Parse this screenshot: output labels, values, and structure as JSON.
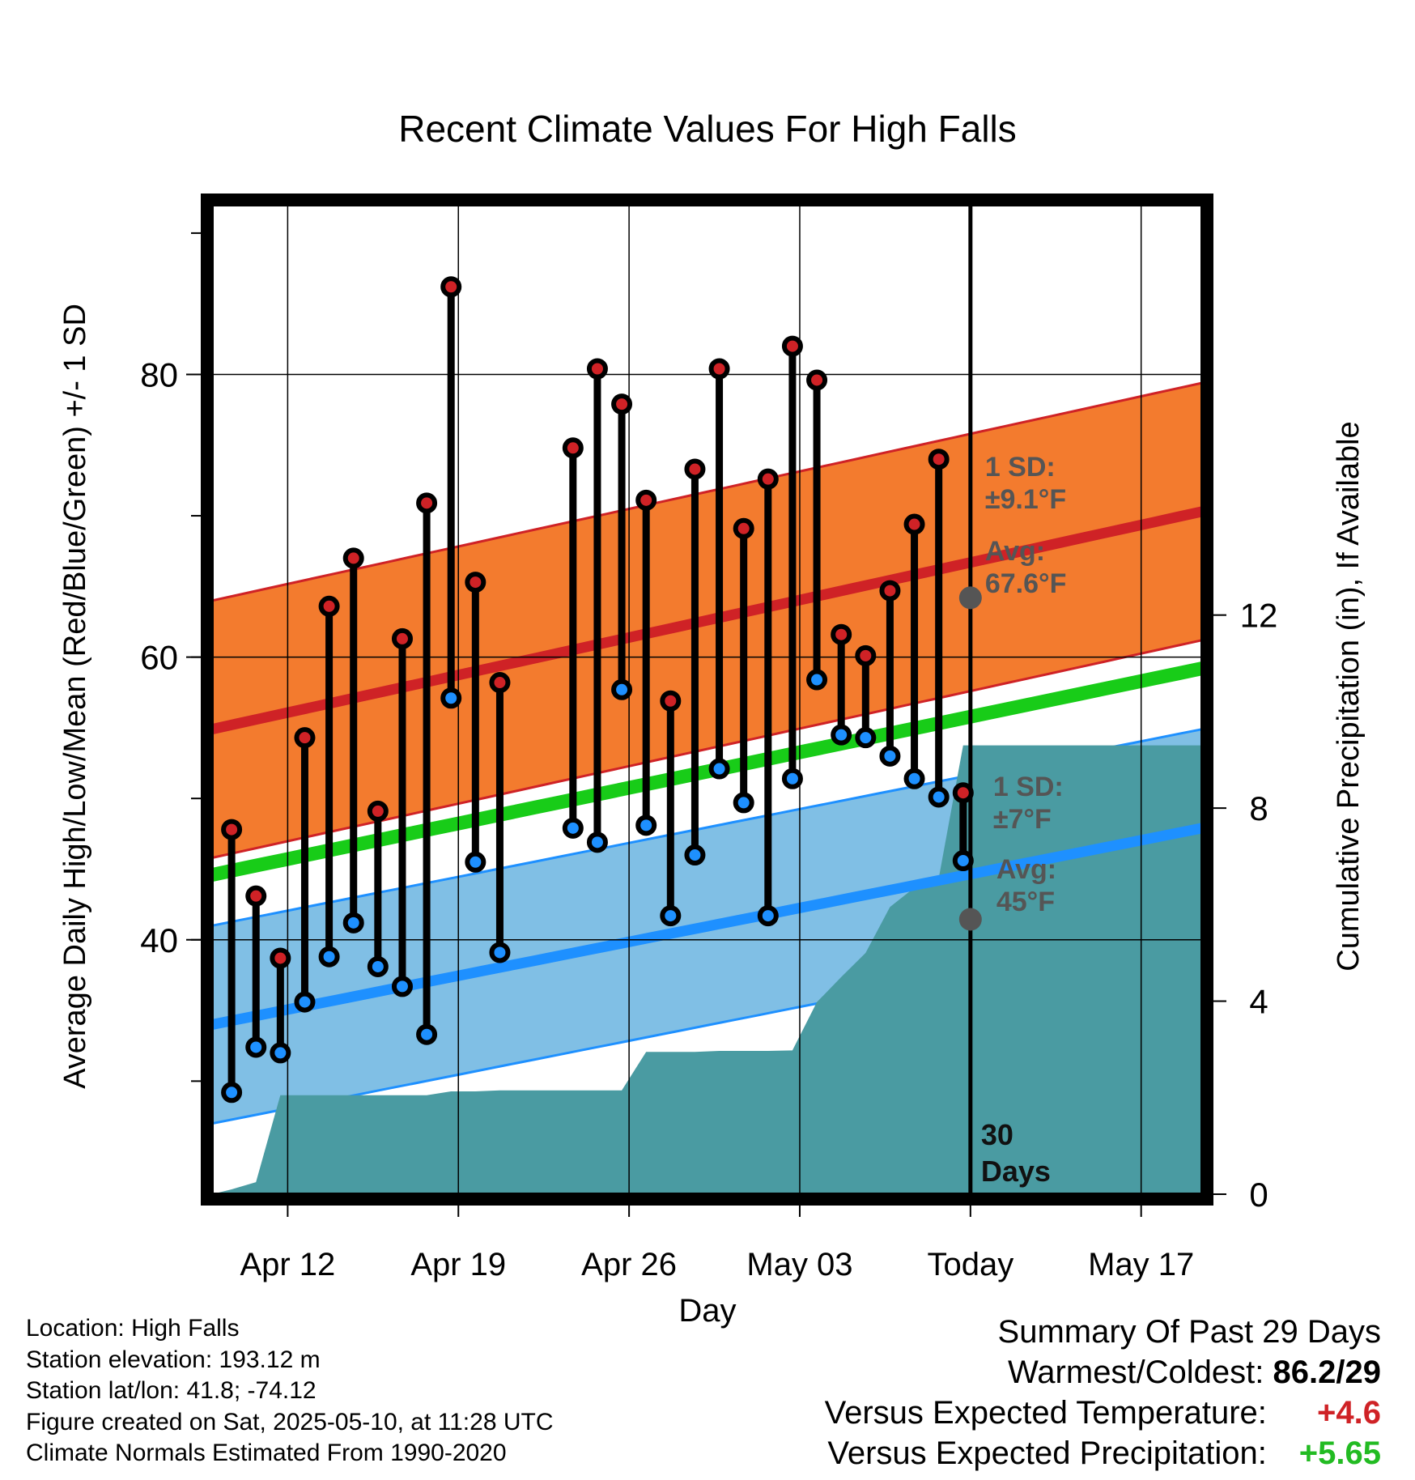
{
  "chart_data": {
    "type": "line",
    "title": "Recent Climate Values For High Falls",
    "xlabel": "Day",
    "ylabel": "Average Daily High/Low/Mean (Red/Blue/Green) +/- 1 SD",
    "y2label": "Cumulative Precipitation (in), If Available",
    "x_ticks": [
      "Apr 12",
      "Apr 19",
      "Apr 26",
      "May 03",
      "Today",
      "May 17"
    ],
    "x_tick_days": [
      12,
      19,
      26,
      33,
      40,
      47
    ],
    "xlim": [
      8.9,
      49.5
    ],
    "ylim": [
      22,
      92
    ],
    "y_ticks": [
      40,
      60,
      80
    ],
    "y2lim": [
      0,
      20.5
    ],
    "y2_ticks": [
      0,
      4,
      8,
      12
    ],
    "grid": true,
    "today_day": 40,
    "today_label": "30 Days",
    "daily": [
      {
        "day": 9.7,
        "high": 47.8,
        "low": 29.2
      },
      {
        "day": 10.7,
        "high": 43.1,
        "low": 32.4
      },
      {
        "day": 11.7,
        "high": 38.7,
        "low": 32.0
      },
      {
        "day": 12.7,
        "high": 54.3,
        "low": 35.6
      },
      {
        "day": 13.7,
        "high": 63.6,
        "low": 38.8
      },
      {
        "day": 14.7,
        "high": 67.0,
        "low": 41.2
      },
      {
        "day": 15.7,
        "high": 49.1,
        "low": 38.1
      },
      {
        "day": 16.7,
        "high": 61.3,
        "low": 36.7
      },
      {
        "day": 17.7,
        "high": 70.9,
        "low": 33.3
      },
      {
        "day": 18.7,
        "high": 86.2,
        "low": 57.1
      },
      {
        "day": 19.7,
        "high": 65.3,
        "low": 45.5
      },
      {
        "day": 20.7,
        "high": 58.2,
        "low": 39.1
      },
      {
        "day": 23.7,
        "high": 74.8,
        "low": 47.9
      },
      {
        "day": 24.7,
        "high": 80.4,
        "low": 46.9
      },
      {
        "day": 25.7,
        "high": 77.9,
        "low": 57.7
      },
      {
        "day": 26.7,
        "high": 71.1,
        "low": 48.1
      },
      {
        "day": 27.7,
        "high": 56.9,
        "low": 41.7
      },
      {
        "day": 28.7,
        "high": 73.3,
        "low": 46.0
      },
      {
        "day": 29.7,
        "high": 80.4,
        "low": 52.1
      },
      {
        "day": 30.7,
        "high": 69.1,
        "low": 49.7
      },
      {
        "day": 31.7,
        "high": 72.6,
        "low": 41.7
      },
      {
        "day": 32.7,
        "high": 82.0,
        "low": 51.4
      },
      {
        "day": 33.7,
        "high": 79.6,
        "low": 58.4
      },
      {
        "day": 34.7,
        "high": 61.6,
        "low": 54.5
      },
      {
        "day": 35.7,
        "high": 60.1,
        "low": 54.3
      },
      {
        "day": 36.7,
        "high": 64.7,
        "low": 53.0
      },
      {
        "day": 37.7,
        "high": 69.4,
        "low": 51.4
      },
      {
        "day": 38.7,
        "high": 74.0,
        "low": 50.1
      },
      {
        "day": 39.7,
        "high": 50.4,
        "low": 45.6
      }
    ],
    "normal_high": {
      "start": 54.9,
      "end": 70.3,
      "sd": 9.1
    },
    "normal_low": {
      "start": 34.0,
      "end": 47.9,
      "sd": 7
    },
    "normal_mean": {
      "start": 44.6,
      "end": 59.2
    },
    "precip_cumulative": [
      {
        "day": 9.7,
        "v": 0.1
      },
      {
        "day": 10.7,
        "v": 0.25
      },
      {
        "day": 11.7,
        "v": 2.05
      },
      {
        "day": 12.7,
        "v": 2.05
      },
      {
        "day": 13.7,
        "v": 2.05
      },
      {
        "day": 14.7,
        "v": 2.05
      },
      {
        "day": 15.7,
        "v": 2.05
      },
      {
        "day": 16.7,
        "v": 2.05
      },
      {
        "day": 17.7,
        "v": 2.05
      },
      {
        "day": 18.7,
        "v": 2.13
      },
      {
        "day": 19.7,
        "v": 2.13
      },
      {
        "day": 20.7,
        "v": 2.15
      },
      {
        "day": 21.7,
        "v": 2.15
      },
      {
        "day": 22.7,
        "v": 2.15
      },
      {
        "day": 23.7,
        "v": 2.15
      },
      {
        "day": 24.7,
        "v": 2.15
      },
      {
        "day": 25.7,
        "v": 2.15
      },
      {
        "day": 26.7,
        "v": 2.95
      },
      {
        "day": 27.7,
        "v": 2.95
      },
      {
        "day": 28.7,
        "v": 2.95
      },
      {
        "day": 29.7,
        "v": 2.97
      },
      {
        "day": 30.7,
        "v": 2.97
      },
      {
        "day": 31.7,
        "v": 2.97
      },
      {
        "day": 32.7,
        "v": 2.98
      },
      {
        "day": 33.7,
        "v": 3.98
      },
      {
        "day": 34.7,
        "v": 4.5
      },
      {
        "day": 35.7,
        "v": 5.0
      },
      {
        "day": 36.7,
        "v": 5.95
      },
      {
        "day": 37.7,
        "v": 6.35
      },
      {
        "day": 38.7,
        "v": 6.55
      },
      {
        "day": 39.7,
        "v": 9.3
      },
      {
        "day": 49.5,
        "v": 9.3
      }
    ],
    "annotations": {
      "high_sd": "1 SD:",
      "high_sd_value": "±9.1°F",
      "high_avg": "Avg:",
      "high_avg_value": "67.6°F",
      "low_sd": "1 SD:",
      "low_sd_value": "±7°F",
      "low_avg": "Avg:",
      "low_avg_value": "45°F"
    },
    "colors": {
      "high_band": "#f37b2e",
      "high_line": "#cf2226",
      "low_band": "#80bfe5",
      "low_line": "#1e90ff",
      "mean_line": "#18cc18",
      "precip": "#4a9ba2",
      "high_marker": "#cf2226",
      "low_marker": "#1e90ff",
      "annotation": "#555555"
    }
  },
  "footer_left": [
    "Location: High Falls",
    "Station elevation: 193.12 m",
    "Station lat/lon: 41.8; -74.12",
    "Figure created on Sat, 2025-05-10, at 11:28 UTC",
    "Climate Normals Estimated From 1990-2020"
  ],
  "summary": {
    "title": "Summary Of Past 29 Days",
    "warmest_label": "Warmest/Coldest:",
    "warmest_value": "86.2/29",
    "temp_label": "Versus Expected Temperature:",
    "temp_value": "+4.6",
    "temp_color": "#cf2226",
    "precip_label": "Versus Expected Precipitation:",
    "precip_value": "+5.65",
    "precip_color": "#22bb22"
  }
}
